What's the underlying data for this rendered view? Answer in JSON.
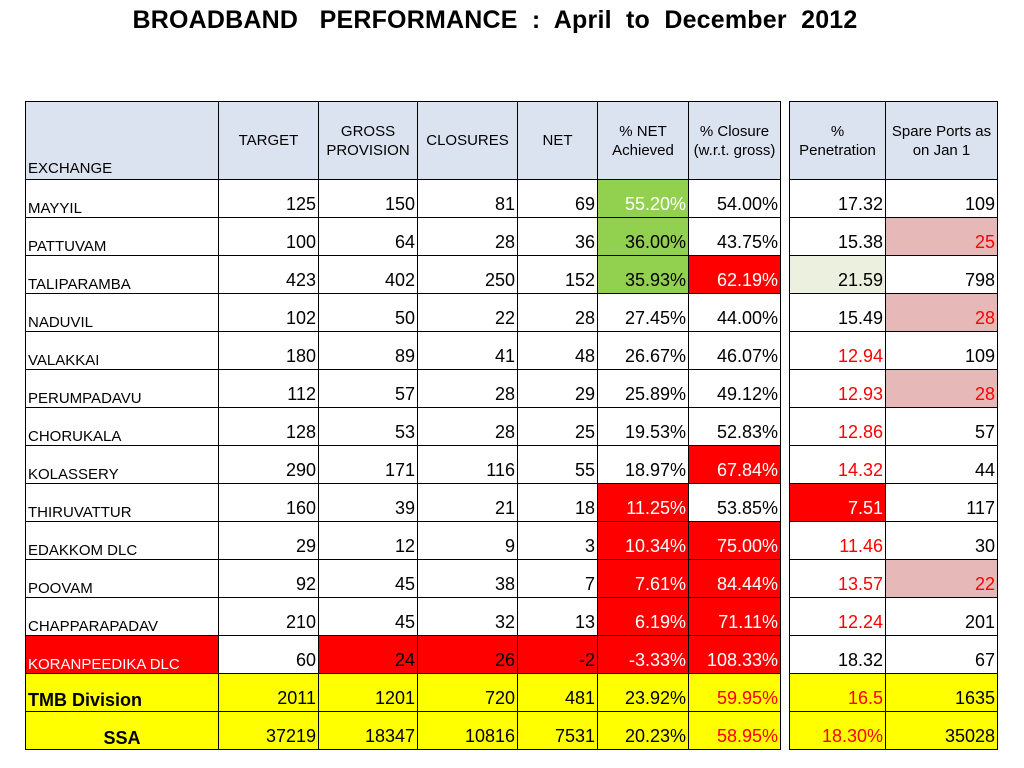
{
  "title": "BROADBAND   PERFORMANCE  :  April  to  December  2012",
  "colors": {
    "header_bg": "#dce3f0",
    "green": "#92d050",
    "red": "#ff0000",
    "pink": "#e6b9b8",
    "pale_green": "#ebf1de",
    "yellow": "#ffff00",
    "text_red": "#ff0000",
    "text_white": "#ffffff",
    "text_default": "#000000"
  },
  "headers": {
    "exchange": "EXCHANGE",
    "target": "TARGET",
    "gross_provision": "GROSS PROVISION",
    "closures": "CLOSURES",
    "net": "NET",
    "pct_net_achieved": "%   NET Achieved",
    "pct_closure": "% Closure (w.r.t. gross)",
    "pct_penetration": "% Penetration",
    "spare_ports": "Spare  Ports as  on  Jan 1"
  },
  "rows": [
    {
      "exchange": "MAYYIL",
      "target": "125",
      "gross": "150",
      "closures": "81",
      "net": "69",
      "net_achieved": "55.20%",
      "closure_pct": "54.00%",
      "penetration": "17.32",
      "spare_ports": "109",
      "fills": {
        "net_achieved": "green"
      },
      "text_colors": {
        "net_achieved": "text_white"
      }
    },
    {
      "exchange": "PATTUVAM",
      "target": "100",
      "gross": "64",
      "closures": "28",
      "net": "36",
      "net_achieved": "36.00%",
      "closure_pct": "43.75%",
      "penetration": "15.38",
      "spare_ports": "25",
      "fills": {
        "net_achieved": "green",
        "spare_ports": "pink"
      },
      "text_colors": {
        "spare_ports": "text_red"
      }
    },
    {
      "exchange": "TALIPARAMBA",
      "target": "423",
      "gross": "402",
      "closures": "250",
      "net": "152",
      "net_achieved": "35.93%",
      "closure_pct": "62.19%",
      "penetration": "21.59",
      "spare_ports": "798",
      "fills": {
        "net_achieved": "green",
        "closure_pct": "red",
        "penetration": "pale_green"
      },
      "text_colors": {
        "closure_pct": "text_white"
      }
    },
    {
      "exchange": "NADUVIL",
      "target": "102",
      "gross": "50",
      "closures": "22",
      "net": "28",
      "net_achieved": "27.45%",
      "closure_pct": "44.00%",
      "penetration": "15.49",
      "spare_ports": "28",
      "fills": {
        "spare_ports": "pink"
      },
      "text_colors": {
        "spare_ports": "text_red"
      }
    },
    {
      "exchange": "VALAKKAI",
      "target": "180",
      "gross": "89",
      "closures": "41",
      "net": "48",
      "net_achieved": "26.67%",
      "closure_pct": "46.07%",
      "penetration": "12.94",
      "spare_ports": "109",
      "fills": {},
      "text_colors": {
        "penetration": "text_red"
      }
    },
    {
      "exchange": "PERUMPADAVU",
      "target": "112",
      "gross": "57",
      "closures": "28",
      "net": "29",
      "net_achieved": "25.89%",
      "closure_pct": "49.12%",
      "penetration": "12.93",
      "spare_ports": "28",
      "fills": {
        "spare_ports": "pink"
      },
      "text_colors": {
        "penetration": "text_red",
        "spare_ports": "text_red"
      }
    },
    {
      "exchange": "CHORUKALA",
      "target": "128",
      "gross": "53",
      "closures": "28",
      "net": "25",
      "net_achieved": "19.53%",
      "closure_pct": "52.83%",
      "penetration": "12.86",
      "spare_ports": "57",
      "fills": {},
      "text_colors": {
        "penetration": "text_red"
      }
    },
    {
      "exchange": "KOLASSERY",
      "target": "290",
      "gross": "171",
      "closures": "116",
      "net": "55",
      "net_achieved": "18.97%",
      "closure_pct": "67.84%",
      "penetration": "14.32",
      "spare_ports": "44",
      "fills": {
        "closure_pct": "red"
      },
      "text_colors": {
        "closure_pct": "text_white",
        "penetration": "text_red"
      }
    },
    {
      "exchange": "THIRUVATTUR",
      "target": "160",
      "gross": "39",
      "closures": "21",
      "net": "18",
      "net_achieved": "11.25%",
      "closure_pct": "53.85%",
      "penetration": "7.51",
      "spare_ports": "117",
      "fills": {
        "net_achieved": "red",
        "penetration": "red"
      },
      "text_colors": {
        "net_achieved": "text_white",
        "penetration": "text_white"
      }
    },
    {
      "exchange": "EDAKKOM DLC",
      "target": "29",
      "gross": "12",
      "closures": "9",
      "net": "3",
      "net_achieved": "10.34%",
      "closure_pct": "75.00%",
      "penetration": "11.46",
      "spare_ports": "30",
      "fills": {
        "net_achieved": "red",
        "closure_pct": "red"
      },
      "text_colors": {
        "net_achieved": "text_white",
        "closure_pct": "text_white",
        "penetration": "text_red"
      }
    },
    {
      "exchange": "POOVAM",
      "target": "92",
      "gross": "45",
      "closures": "38",
      "net": "7",
      "net_achieved": "7.61%",
      "closure_pct": "84.44%",
      "penetration": "13.57",
      "spare_ports": "22",
      "fills": {
        "net_achieved": "red",
        "closure_pct": "red",
        "spare_ports": "pink"
      },
      "text_colors": {
        "net_achieved": "text_white",
        "closure_pct": "text_white",
        "penetration": "text_red",
        "spare_ports": "text_red"
      }
    },
    {
      "exchange": "CHAPPARAPADAV",
      "target": "210",
      "gross": "45",
      "closures": "32",
      "net": "13",
      "net_achieved": "6.19%",
      "closure_pct": "71.11%",
      "penetration": "12.24",
      "spare_ports": "201",
      "fills": {
        "net_achieved": "red",
        "closure_pct": "red"
      },
      "text_colors": {
        "net_achieved": "text_white",
        "closure_pct": "text_white",
        "penetration": "text_red"
      }
    },
    {
      "exchange": "KORANPEEDIKA DLC",
      "target": "60",
      "gross": "24",
      "closures": "26",
      "net": "-2",
      "net_achieved": "-3.33%",
      "closure_pct": "108.33%",
      "penetration": "18.32",
      "spare_ports": "67",
      "fills": {
        "exchange": "red",
        "gross": "red",
        "closures": "red",
        "net": "red",
        "net_achieved": "red",
        "closure_pct": "red"
      },
      "text_colors": {
        "exchange": "text_white",
        "net_achieved": "text_white",
        "closure_pct": "text_white"
      }
    }
  ],
  "summary": [
    {
      "exchange": "TMB   Division",
      "target": "2011",
      "gross": "1201",
      "closures": "720",
      "net": "481",
      "net_achieved": "23.92%",
      "closure_pct": "59.95%",
      "penetration": "16.5",
      "spare_ports": "1635",
      "align": "left",
      "text_colors": {
        "closure_pct": "text_red",
        "penetration": "text_red"
      }
    },
    {
      "exchange": "SSA",
      "target": "37219",
      "gross": "18347",
      "closures": "10816",
      "net": "7531",
      "net_achieved": "20.23%",
      "closure_pct": "58.95%",
      "penetration": "18.30%",
      "spare_ports": "35028",
      "align": "center",
      "text_colors": {
        "closure_pct": "text_red",
        "penetration": "text_red"
      }
    }
  ]
}
